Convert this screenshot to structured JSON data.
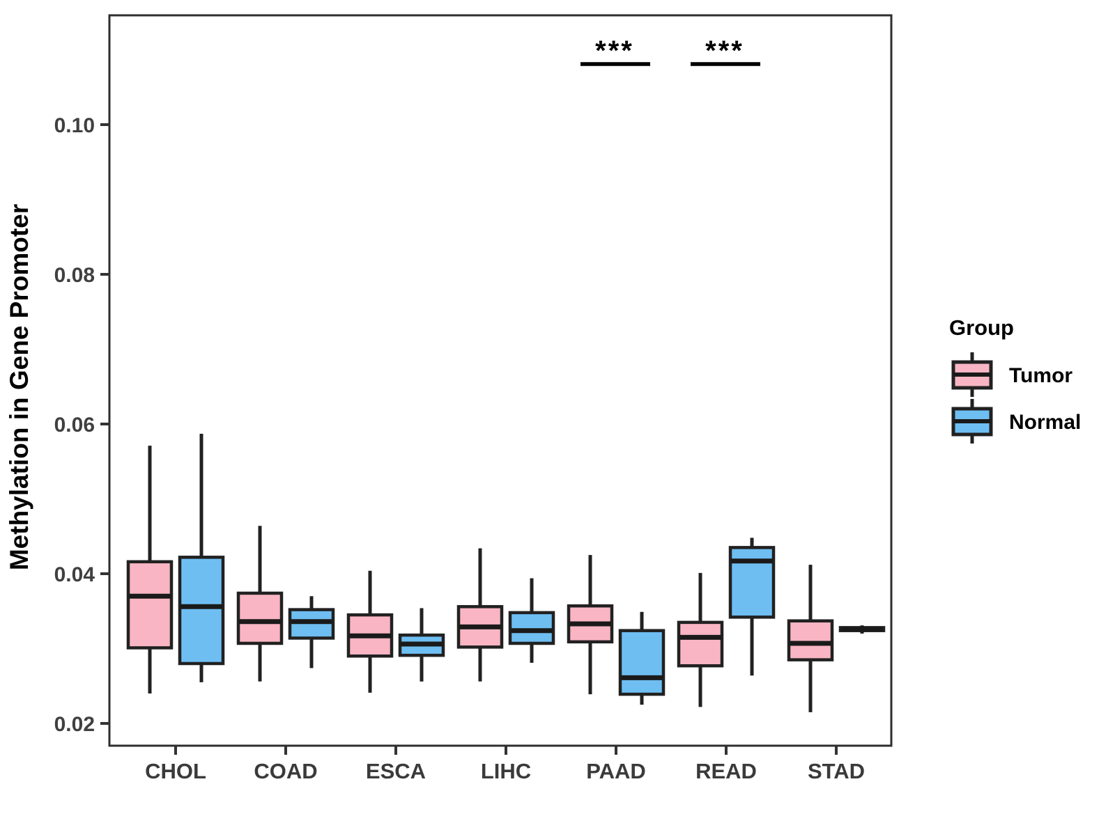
{
  "chart_data": {
    "type": "grouped_boxplot",
    "title": "",
    "xlabel": "",
    "ylabel": "Methylation in Gene Promoter",
    "categories": [
      "CHOL",
      "COAD",
      "ESCA",
      "LIHC",
      "PAAD",
      "READ",
      "STAD"
    ],
    "y_ticks": [
      0.02,
      0.04,
      0.06,
      0.08,
      0.1
    ],
    "y_tick_labels": [
      "0.02",
      "0.04",
      "0.06",
      "0.08",
      "0.10"
    ],
    "ylim": [
      0.017,
      0.114
    ],
    "grid": false,
    "legend": {
      "title": "Group",
      "position": "right",
      "entries": [
        {
          "label": "Tumor",
          "color": "#F9B5C3"
        },
        {
          "label": "Normal",
          "color": "#6EBEF2"
        }
      ]
    },
    "series": [
      {
        "name": "Tumor",
        "color": "#F9B5C3",
        "boxes": [
          {
            "category": "CHOL",
            "min": 0.024,
            "q1": 0.0301,
            "median": 0.037,
            "q3": 0.0416,
            "max": 0.0571
          },
          {
            "category": "COAD",
            "min": 0.0256,
            "q1": 0.0307,
            "median": 0.0336,
            "q3": 0.0374,
            "max": 0.0464
          },
          {
            "category": "ESCA",
            "min": 0.0241,
            "q1": 0.029,
            "median": 0.0317,
            "q3": 0.0345,
            "max": 0.0404
          },
          {
            "category": "LIHC",
            "min": 0.0256,
            "q1": 0.0302,
            "median": 0.0329,
            "q3": 0.0356,
            "max": 0.0434
          },
          {
            "category": "PAAD",
            "min": 0.0239,
            "q1": 0.0309,
            "median": 0.0333,
            "q3": 0.0357,
            "max": 0.0425
          },
          {
            "category": "READ",
            "min": 0.0222,
            "q1": 0.0277,
            "median": 0.0315,
            "q3": 0.0335,
            "max": 0.0401
          },
          {
            "category": "STAD",
            "min": 0.0215,
            "q1": 0.0285,
            "median": 0.0307,
            "q3": 0.0337,
            "max": 0.0412
          }
        ]
      },
      {
        "name": "Normal",
        "color": "#6EBEF2",
        "boxes": [
          {
            "category": "CHOL",
            "min": 0.0255,
            "q1": 0.028,
            "median": 0.0356,
            "q3": 0.0422,
            "max": 0.0587
          },
          {
            "category": "COAD",
            "min": 0.0274,
            "q1": 0.0314,
            "median": 0.0336,
            "q3": 0.0352,
            "max": 0.037
          },
          {
            "category": "ESCA",
            "min": 0.0256,
            "q1": 0.0291,
            "median": 0.0306,
            "q3": 0.0318,
            "max": 0.0354
          },
          {
            "category": "LIHC",
            "min": 0.0281,
            "q1": 0.0307,
            "median": 0.0324,
            "q3": 0.0348,
            "max": 0.0394
          },
          {
            "category": "PAAD",
            "min": 0.0225,
            "q1": 0.0239,
            "median": 0.0261,
            "q3": 0.0324,
            "max": 0.0349
          },
          {
            "category": "READ",
            "min": 0.0264,
            "q1": 0.0342,
            "median": 0.0417,
            "q3": 0.0435,
            "max": 0.0448
          },
          {
            "category": "STAD",
            "min": 0.032,
            "q1": 0.0324,
            "median": 0.0326,
            "q3": 0.0328,
            "max": 0.0331
          }
        ]
      }
    ],
    "significance": [
      {
        "category": "PAAD",
        "label": "***"
      },
      {
        "category": "READ",
        "label": "***"
      }
    ],
    "style": {
      "box_border_color": "#212121",
      "median_color": "#1a1a1a",
      "whisker_color": "#212121",
      "panel_border_color": "#2e2e2e",
      "tick_color": "#333333",
      "background": "#ffffff"
    }
  }
}
